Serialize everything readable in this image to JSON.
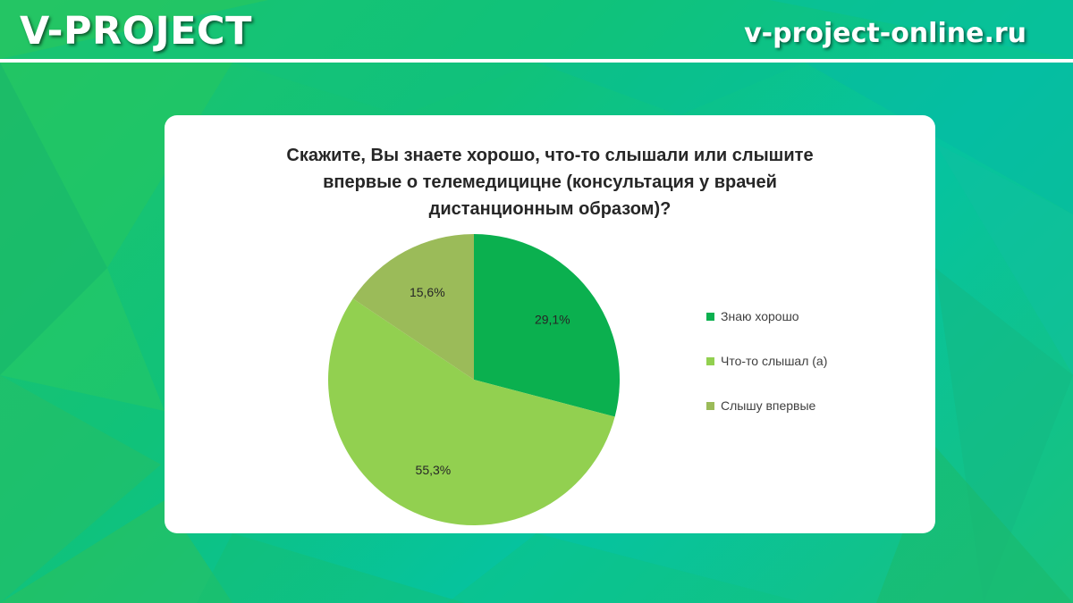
{
  "header": {
    "brand": "V-PROJECT",
    "site": "v-project-online.ru"
  },
  "colors": {
    "brand_green": "#1fc46a",
    "divider": "#ffffff"
  },
  "chart_data": {
    "type": "pie",
    "title": "Скажите, Вы знаете хорошо, что-то слышали или слышите впервые о телемедицицне (консультация  у врачей дистанционным образом)?",
    "title_lines": [
      "Скажите, Вы знаете хорошо, что-то слышали или слышите",
      "впервые о телемедицицне (консультация  у врачей",
      "дистанционным образом)?"
    ],
    "legend_position": "right",
    "slices": [
      {
        "label": "Знаю хорошо",
        "value": 29.1,
        "display": "29,1%",
        "color": "#0bb04f"
      },
      {
        "label": "Что-то слышал (а)",
        "value": 55.3,
        "display": "55,3%",
        "color": "#92d050"
      },
      {
        "label": "Слышу впервые",
        "value": 15.6,
        "display": "15,6%",
        "color": "#9bbb59"
      }
    ]
  }
}
